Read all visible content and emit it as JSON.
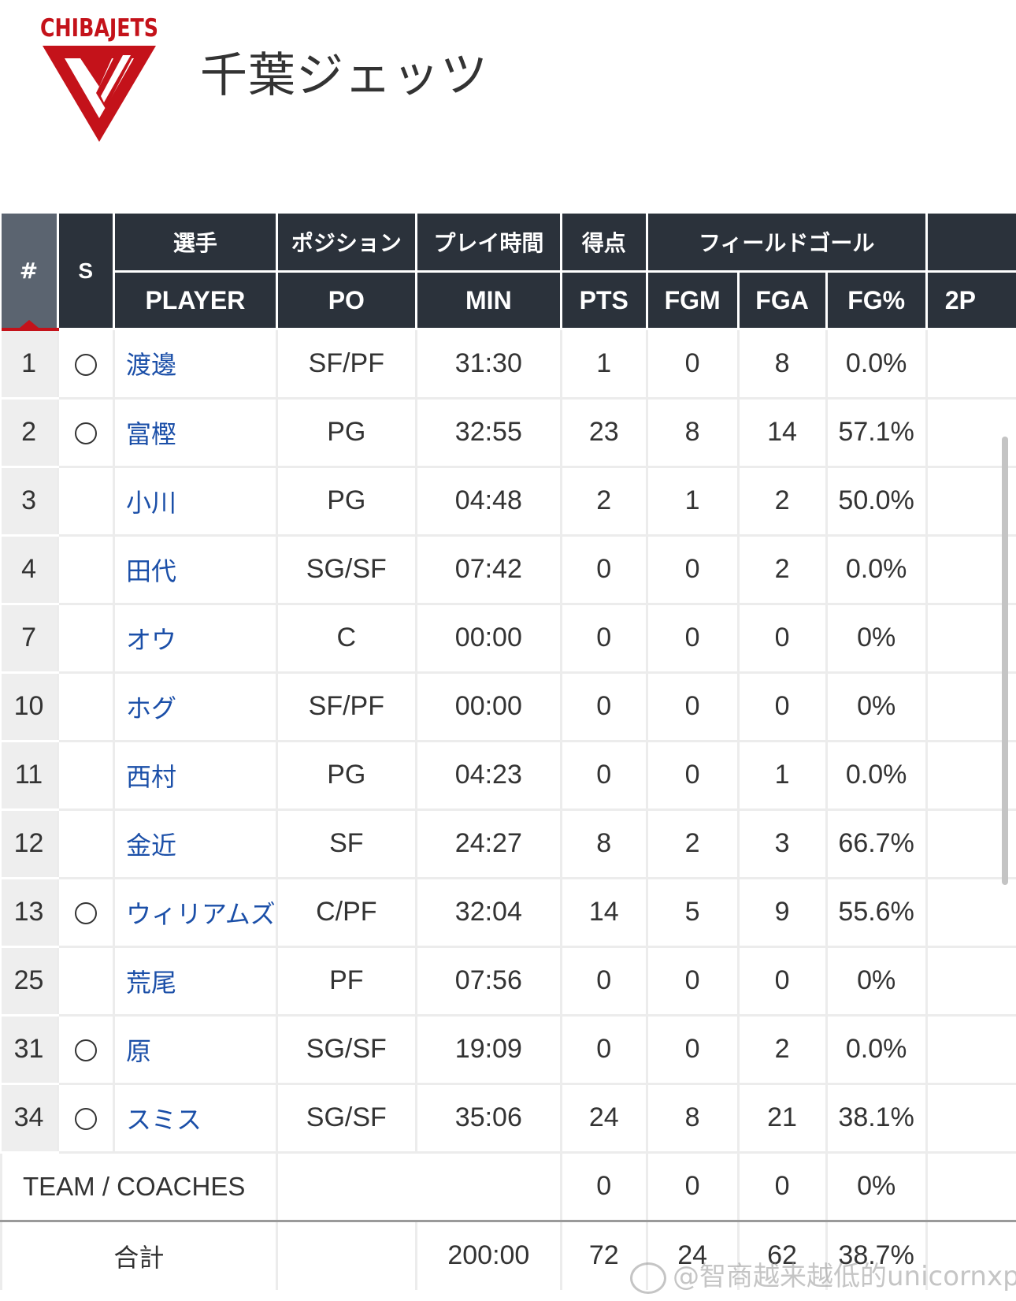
{
  "header": {
    "logo_text": "CHIBAJETS",
    "team_name": "千葉ジェッツ"
  },
  "colors": {
    "header_bg": "#2b323b",
    "num_col_bg": "#5b6470",
    "accent_red": "#c4121a",
    "link_blue": "#1b4fa8"
  },
  "table": {
    "headers_top": {
      "num": "#",
      "starter": "S",
      "player": "選手",
      "position": "ポジション",
      "minutes": "プレイ時間",
      "points": "得点",
      "field_goal": "フィールドゴール"
    },
    "headers_bottom": {
      "player": "PLAYER",
      "position": "PO",
      "minutes": "MIN",
      "points": "PTS",
      "fgm": "FGM",
      "fga": "FGA",
      "fgp": "FG%",
      "next": "2P"
    },
    "starter_mark": "○",
    "rows": [
      {
        "num": "1",
        "starter": true,
        "name": "渡邊",
        "pos": "SF/PF",
        "min": "31:30",
        "pts": "1",
        "fgm": "0",
        "fga": "8",
        "fgp": "0.0%"
      },
      {
        "num": "2",
        "starter": true,
        "name": "富樫",
        "pos": "PG",
        "min": "32:55",
        "pts": "23",
        "fgm": "8",
        "fga": "14",
        "fgp": "57.1%"
      },
      {
        "num": "3",
        "starter": false,
        "name": "小川",
        "pos": "PG",
        "min": "04:48",
        "pts": "2",
        "fgm": "1",
        "fga": "2",
        "fgp": "50.0%"
      },
      {
        "num": "4",
        "starter": false,
        "name": "田代",
        "pos": "SG/SF",
        "min": "07:42",
        "pts": "0",
        "fgm": "0",
        "fga": "2",
        "fgp": "0.0%"
      },
      {
        "num": "7",
        "starter": false,
        "name": "オウ",
        "pos": "C",
        "min": "00:00",
        "pts": "0",
        "fgm": "0",
        "fga": "0",
        "fgp": "0%"
      },
      {
        "num": "10",
        "starter": false,
        "name": "ホグ",
        "pos": "SF/PF",
        "min": "00:00",
        "pts": "0",
        "fgm": "0",
        "fga": "0",
        "fgp": "0%"
      },
      {
        "num": "11",
        "starter": false,
        "name": "西村",
        "pos": "PG",
        "min": "04:23",
        "pts": "0",
        "fgm": "0",
        "fga": "1",
        "fgp": "0.0%"
      },
      {
        "num": "12",
        "starter": false,
        "name": "金近",
        "pos": "SF",
        "min": "24:27",
        "pts": "8",
        "fgm": "2",
        "fga": "3",
        "fgp": "66.7%"
      },
      {
        "num": "13",
        "starter": true,
        "name": "ウィリアムズ",
        "pos": "C/PF",
        "min": "32:04",
        "pts": "14",
        "fgm": "5",
        "fga": "9",
        "fgp": "55.6%"
      },
      {
        "num": "25",
        "starter": false,
        "name": "荒尾",
        "pos": "PF",
        "min": "07:56",
        "pts": "0",
        "fgm": "0",
        "fga": "0",
        "fgp": "0%"
      },
      {
        "num": "31",
        "starter": true,
        "name": "原",
        "pos": "SG/SF",
        "min": "19:09",
        "pts": "0",
        "fgm": "0",
        "fga": "2",
        "fgp": "0.0%"
      },
      {
        "num": "34",
        "starter": true,
        "name": "スミス",
        "pos": "SG/SF",
        "min": "35:06",
        "pts": "24",
        "fgm": "8",
        "fga": "21",
        "fgp": "38.1%"
      }
    ],
    "team_row": {
      "label": "TEAM / COACHES",
      "pts": "0",
      "fgm": "0",
      "fga": "0",
      "fgp": "0%"
    },
    "total_row": {
      "label": "合計",
      "min": "200:00",
      "pts": "72",
      "fgm": "24",
      "fga": "62",
      "fgp": "38.7%"
    }
  },
  "watermark": "@智商越来越低的unicornxp"
}
